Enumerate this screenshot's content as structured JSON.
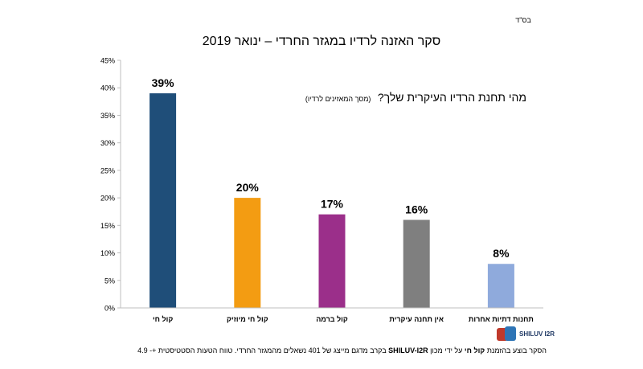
{
  "header": {
    "bsd": "בס\"ד",
    "title": "סקר האזנה לרדיו במגזר החרדי – ינואר 2019"
  },
  "question": {
    "main": "מהי תחנת הרדיו העיקרית שלך?",
    "sub": "(מסך המאזינים לרדיו)"
  },
  "footer": {
    "part1": "הסקר בוצע בהזמנת ",
    "sponsor": "קול חי",
    "part2": " על ידי מכון ",
    "institute": "SHILUV-I2R",
    "part3": " בקרב מדגם מייצג של 401 נשאלים מהמגזר החרדי. טווח הטעות הסטטיסטית +- 4.9"
  },
  "logo": {
    "text": "SHILUV I2R"
  },
  "colors": {
    "bar1": "#1f4e79",
    "bar2": "#f39c12",
    "bar3": "#9b2f8a",
    "bar4": "#7f7f7f",
    "bar5": "#8faadc",
    "axis": "#bfbfbf",
    "logo_red": "#c0392b",
    "logo_blue": "#2e75b6"
  },
  "chart_data": {
    "type": "bar",
    "title": "סקר האזנה לרדיו במגזר החרדי – ינואר 2019",
    "categories": [
      "קול חי",
      "קול חי מיוזיק",
      "קול ברמה",
      "אין תחנה עיקרית",
      "תחנות דתיות אחרות"
    ],
    "values": [
      39,
      20,
      17,
      16,
      8
    ],
    "value_labels": [
      "39%",
      "20%",
      "17%",
      "16%",
      "8%"
    ],
    "ylim": [
      0,
      45
    ],
    "yticks": [
      "0%",
      "5%",
      "10%",
      "15%",
      "20%",
      "25%",
      "30%",
      "35%",
      "40%",
      "45%"
    ],
    "xlabel": "",
    "ylabel": "",
    "grid": false,
    "legend": "none"
  }
}
